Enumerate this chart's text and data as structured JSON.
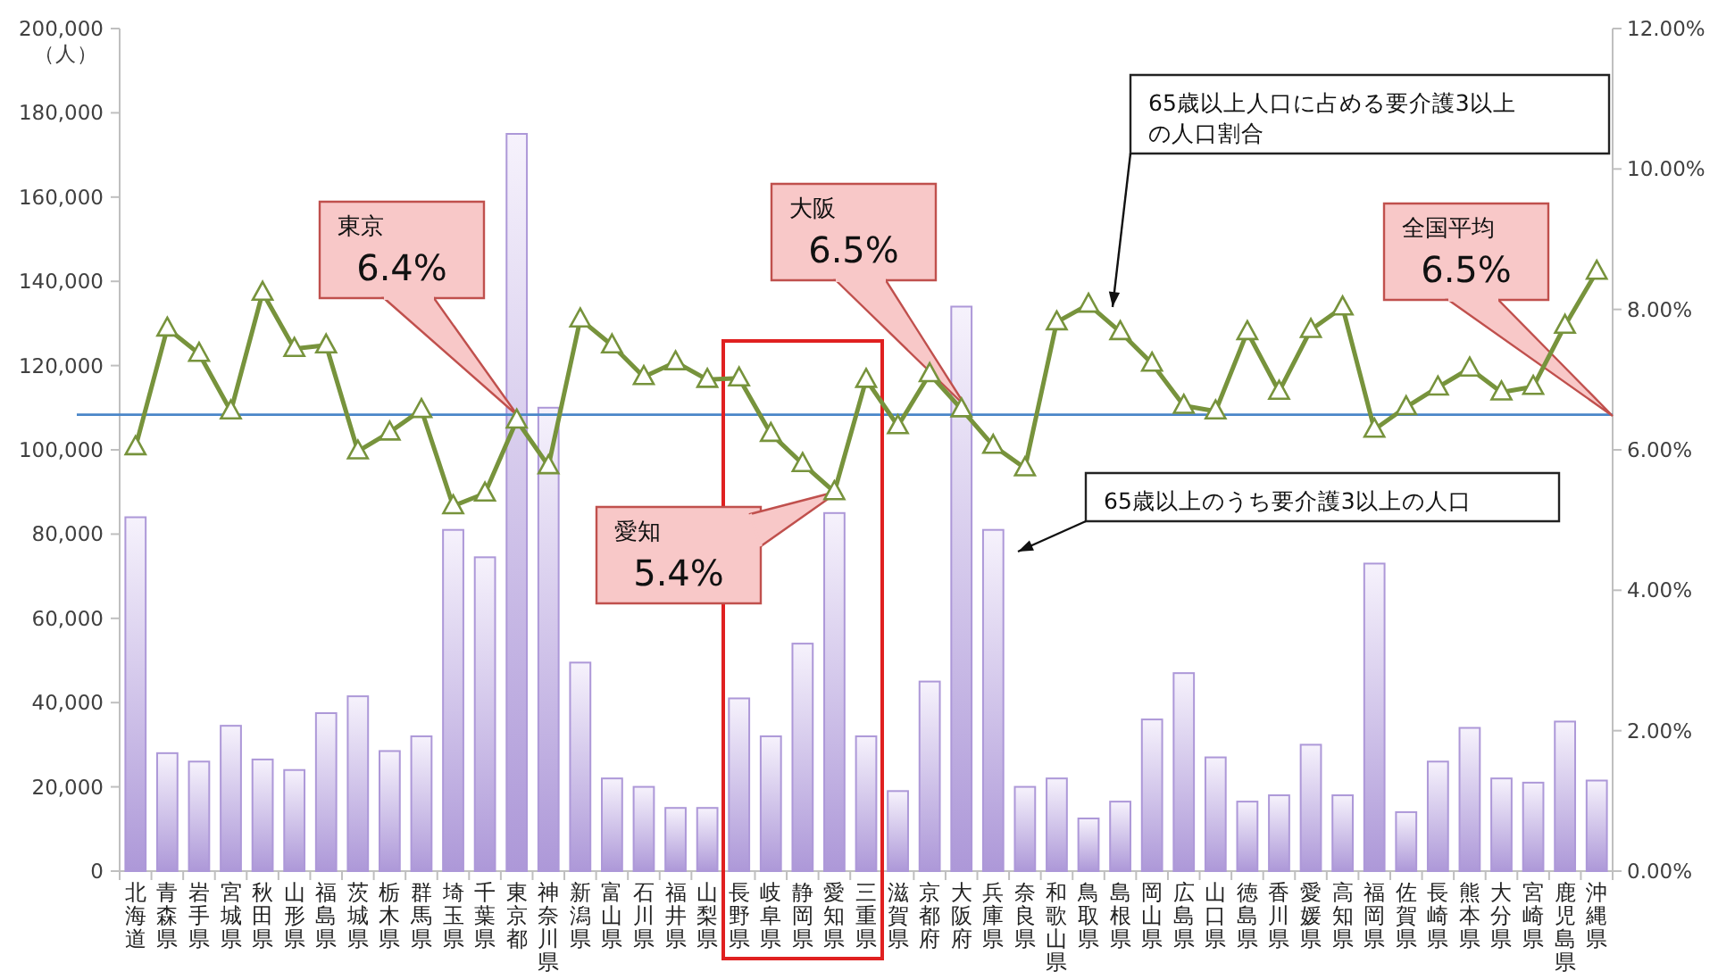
{
  "chart_data": {
    "type": "bar",
    "ylabel": "（人）",
    "categories": [
      "北海道",
      "青森県",
      "岩手県",
      "宮城県",
      "秋田県",
      "山形県",
      "福島県",
      "茨城県",
      "栃木県",
      "群馬県",
      "埼玉県",
      "千葉県",
      "東京都",
      "神奈川県",
      "新潟県",
      "富山県",
      "石川県",
      "福井県",
      "山梨県",
      "長野県",
      "岐阜県",
      "静岡県",
      "愛知県",
      "三重県",
      "滋賀県",
      "京都府",
      "大阪府",
      "兵庫県",
      "奈良県",
      "和歌山県",
      "鳥取県",
      "島根県",
      "岡山県",
      "広島県",
      "山口県",
      "徳島県",
      "香川県",
      "愛媛県",
      "高知県",
      "福岡県",
      "佐賀県",
      "長崎県",
      "熊本県",
      "大分県",
      "宮崎県",
      "鹿児島県",
      "沖縄県"
    ],
    "series": [
      {
        "name": "65歳以上のうち要介護3以上の人口",
        "color": "#ad98d8",
        "values": [
          84000,
          28000,
          26000,
          34500,
          26500,
          24000,
          37500,
          41500,
          28500,
          32000,
          81000,
          74500,
          175000,
          110000,
          49500,
          22000,
          20000,
          15000,
          15000,
          41000,
          32000,
          54000,
          85000,
          32000,
          19000,
          45000,
          134000,
          81000,
          20000,
          22000,
          12500,
          16500,
          36000,
          47000,
          27000,
          16500,
          18000,
          30000,
          18000,
          73000,
          14000,
          26000,
          34000,
          22000,
          21000,
          35500,
          21500
        ]
      },
      {
        "name": "65歳以上人口に占める要介護3以上の人口割合",
        "type": "line",
        "axis": "y2",
        "color": "#77933c",
        "marker": "triangle",
        "values": [
          6.04,
          7.73,
          7.37,
          6.55,
          8.24,
          7.44,
          7.49,
          5.98,
          6.25,
          6.57,
          5.2,
          5.38,
          6.42,
          5.77,
          7.86,
          7.49,
          7.04,
          7.25,
          7.0,
          7.02,
          6.23,
          5.8,
          5.4,
          7.0,
          6.34,
          7.08,
          6.58,
          6.06,
          5.74,
          7.82,
          8.07,
          7.68,
          7.23,
          6.63,
          6.55,
          7.68,
          6.83,
          7.71,
          8.03,
          6.29,
          6.61,
          6.89,
          7.16,
          6.82,
          6.9,
          7.77,
          8.54
        ]
      }
    ],
    "ylim": [
      0,
      200000
    ],
    "yticks": [
      {
        "value": 0,
        "label": "0"
      },
      {
        "value": 20000,
        "label": "20,000"
      },
      {
        "value": 40000,
        "label": "40,000"
      },
      {
        "value": 60000,
        "label": "60,000"
      },
      {
        "value": 80000,
        "label": "80,000"
      },
      {
        "value": 100000,
        "label": "100,000"
      },
      {
        "value": 120000,
        "label": "120,000"
      },
      {
        "value": 140000,
        "label": "140,000"
      },
      {
        "value": 160000,
        "label": "160,000"
      },
      {
        "value": 180000,
        "label": "180,000"
      },
      {
        "value": 200000,
        "label": "200,000"
      }
    ],
    "y2lim": [
      0,
      12
    ],
    "y2ticks": [
      {
        "value": 0,
        "label": "0.00%"
      },
      {
        "value": 2,
        "label": "2.00%"
      },
      {
        "value": 4,
        "label": "4.00%"
      },
      {
        "value": 6,
        "label": "6.00%"
      },
      {
        "value": 8,
        "label": "8.00%"
      },
      {
        "value": 10,
        "label": "10.00%"
      },
      {
        "value": 12,
        "label": "12.00%"
      }
    ],
    "ref_lines": [
      {
        "axis": "y2",
        "value": 6.5,
        "color": "#4a86c8"
      }
    ],
    "annotations": [
      "東京 6.4%",
      "大阪 6.5%",
      "愛知 5.4%",
      "全国平均 6.5%"
    ],
    "grid": false
  }
}
